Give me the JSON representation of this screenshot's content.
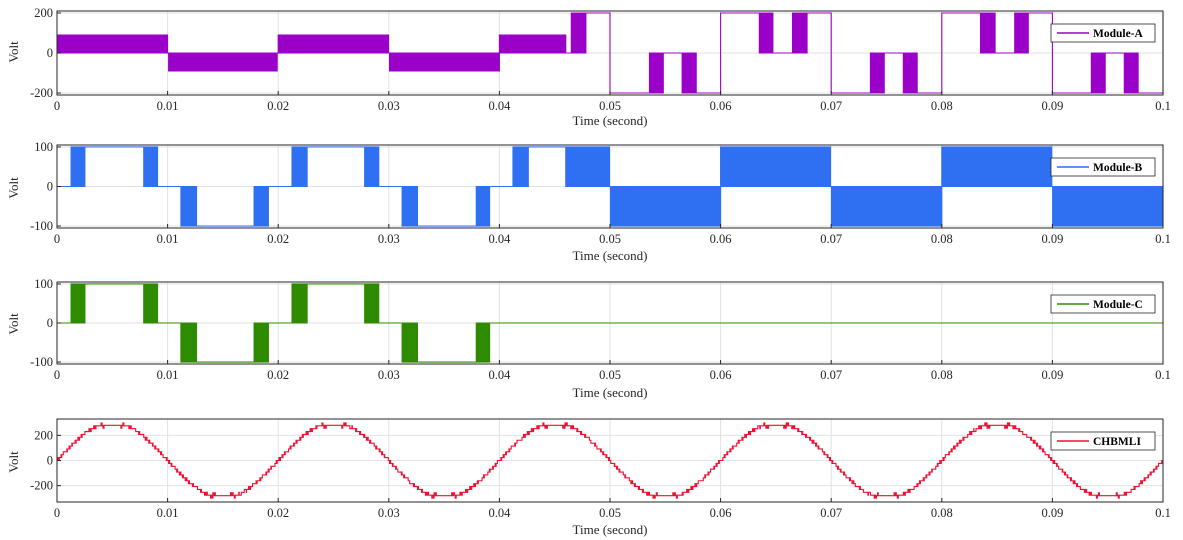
{
  "chart_data": [
    {
      "type": "line",
      "title": "",
      "xlabel": "Time (second)",
      "ylabel": "Volt",
      "xlim": [
        0,
        0.1
      ],
      "ylim": [
        -210,
        210
      ],
      "xticks": [
        "0",
        "0.01",
        "0.02",
        "0.03",
        "0.04",
        "0.05",
        "0.06",
        "0.07",
        "0.08",
        "0.09",
        "0.1"
      ],
      "yticks": [
        "-200",
        "0",
        "200"
      ],
      "ytick_values": [
        -200,
        0,
        200
      ],
      "grid": true,
      "legend_position": "top-right",
      "series": [
        {
          "name": "Module-A",
          "color": "#9a00c8",
          "description_points": [
            [
              0,
              90
            ],
            [
              0.01,
              -90
            ],
            [
              0.02,
              90
            ],
            [
              0.03,
              -90
            ],
            [
              0.04,
              90
            ],
            [
              0.046,
              200
            ],
            [
              0.05,
              -200
            ],
            [
              0.06,
              200
            ],
            [
              0.07,
              -200
            ],
            [
              0.08,
              200
            ],
            [
              0.09,
              -200
            ]
          ]
        }
      ]
    },
    {
      "type": "line",
      "title": "",
      "xlabel": "Time (second)",
      "ylabel": "Volt",
      "xlim": [
        0,
        0.1
      ],
      "ylim": [
        -105,
        105
      ],
      "xticks": [
        "0",
        "0.01",
        "0.02",
        "0.03",
        "0.04",
        "0.05",
        "0.06",
        "0.07",
        "0.08",
        "0.09",
        "0.1"
      ],
      "yticks": [
        "-100",
        "0",
        "100"
      ],
      "ytick_values": [
        -100,
        0,
        100
      ],
      "grid": true,
      "legend_position": "top-right",
      "series": [
        {
          "name": "Module-B",
          "color": "#2f6ff2",
          "description_points": [
            [
              0.001,
              100
            ],
            [
              0.011,
              -100
            ],
            [
              0.021,
              100
            ],
            [
              0.031,
              -100
            ],
            [
              0.041,
              100
            ],
            [
              0.046,
              100
            ],
            [
              0.05,
              -100
            ],
            [
              0.06,
              100
            ],
            [
              0.07,
              -100
            ],
            [
              0.08,
              100
            ],
            [
              0.09,
              -100
            ]
          ]
        }
      ]
    },
    {
      "type": "line",
      "title": "",
      "xlabel": "Time (second)",
      "ylabel": "Volt",
      "xlim": [
        0,
        0.1
      ],
      "ylim": [
        -105,
        105
      ],
      "xticks": [
        "0",
        "0.01",
        "0.02",
        "0.03",
        "0.04",
        "0.05",
        "0.06",
        "0.07",
        "0.08",
        "0.09",
        "0.1"
      ],
      "yticks": [
        "-100",
        "0",
        "100"
      ],
      "ytick_values": [
        -100,
        0,
        100
      ],
      "grid": true,
      "legend_position": "top-right",
      "series": [
        {
          "name": "Module-C",
          "color": "#2e8b00",
          "description_points": [
            [
              0.001,
              100
            ],
            [
              0.011,
              -100
            ],
            [
              0.021,
              100
            ],
            [
              0.031,
              -100
            ],
            [
              0.04,
              0
            ],
            [
              0.1,
              0
            ]
          ]
        }
      ]
    },
    {
      "type": "line",
      "title": "",
      "xlabel": "Time (second)",
      "ylabel": "Volt",
      "xlim": [
        0,
        0.1
      ],
      "ylim": [
        -330,
        330
      ],
      "xticks": [
        "0",
        "0.01",
        "0.02",
        "0.03",
        "0.04",
        "0.05",
        "0.06",
        "0.07",
        "0.08",
        "0.09",
        "0.1"
      ],
      "yticks": [
        "-200",
        "0",
        "200"
      ],
      "ytick_values": [
        -200,
        0,
        200
      ],
      "grid": true,
      "legend_position": "top-right",
      "series": [
        {
          "name": "CHBMLI",
          "color": "#ee1133",
          "description_points": [
            [
              0,
              0
            ],
            [
              0.005,
              280
            ],
            [
              0.015,
              -280
            ],
            [
              0.025,
              280
            ],
            [
              0.035,
              -280
            ],
            [
              0.045,
              280
            ],
            [
              0.055,
              -280
            ],
            [
              0.065,
              280
            ],
            [
              0.075,
              -280
            ],
            [
              0.085,
              280
            ],
            [
              0.095,
              -280
            ]
          ]
        }
      ]
    }
  ]
}
